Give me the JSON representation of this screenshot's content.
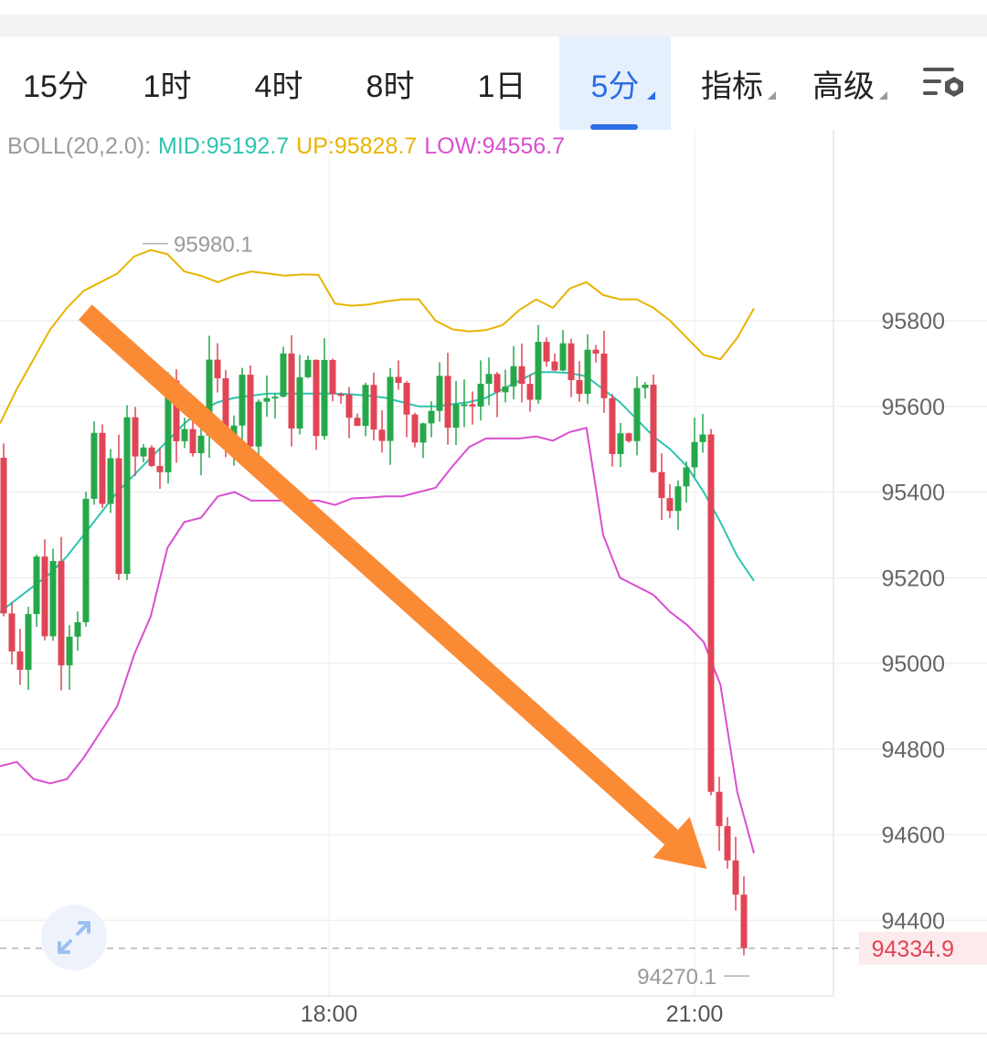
{
  "tabs": [
    {
      "label": "15分",
      "active": false,
      "dropdown": false
    },
    {
      "label": "1时",
      "active": false,
      "dropdown": false
    },
    {
      "label": "4时",
      "active": false,
      "dropdown": false
    },
    {
      "label": "8时",
      "active": false,
      "dropdown": false
    },
    {
      "label": "1日",
      "active": false,
      "dropdown": false
    },
    {
      "label": "5分",
      "active": true,
      "dropdown": true
    },
    {
      "label": "指标",
      "active": false,
      "dropdown": true
    },
    {
      "label": "高级",
      "active": false,
      "dropdown": true
    }
  ],
  "settings_icon": "chart-settings-icon",
  "boll": {
    "name": "BOLL(20,2.0):",
    "mid_label": "MID:95192.7",
    "up_label": "UP:95828.7",
    "low_label": "LOW:94556.7"
  },
  "colors": {
    "mid": "#2ec4b0",
    "up": "#e8b400",
    "low": "#d94fd0",
    "up_candle": "#26a84a",
    "down_candle": "#e04556",
    "arrow": "#fb8a35",
    "last_price": "#e04556"
  },
  "y_axis": {
    "ticks": [
      "95800",
      "95600",
      "95400",
      "95200",
      "95000",
      "94800",
      "94600",
      "94400"
    ]
  },
  "x_axis": {
    "labels": [
      "18:00",
      "21:00"
    ]
  },
  "annotations": {
    "high_label": "95980.1",
    "low_label": "94270.1"
  },
  "last_price": "94334.9",
  "expand_icon": "expand-arrows-icon",
  "chart_data": {
    "type": "candlestick",
    "interval": "5分",
    "y_ticks": [
      95800,
      95600,
      95400,
      95200,
      95000,
      94800,
      94600,
      94400
    ],
    "x_labels": [
      "18:00",
      "21:00"
    ],
    "high_marker": 95980.1,
    "low_marker": 94270.1,
    "last_price": 94334.9,
    "trend_arrow": {
      "from": [
        16.0,
        95820
      ],
      "to": [
        21.1,
        94520
      ]
    },
    "series": [
      {
        "name": "MID",
        "values": [
          95120,
          95150,
          95180,
          95210,
          95250,
          95300,
          95350,
          95400,
          95440,
          95480,
          95520,
          95560,
          95590,
          95610,
          95620,
          95625,
          95630,
          95630,
          95630,
          95630,
          95630,
          95628,
          95625,
          95620,
          95610,
          95600,
          95600,
          95605,
          95610,
          95620,
          95640,
          95660,
          95680,
          95680,
          95678,
          95670,
          95640,
          95610,
          95570,
          95530,
          95500,
          95460,
          95400,
          95330,
          95250,
          95192.7
        ]
      },
      {
        "name": "UP",
        "values": [
          95560,
          95640,
          95710,
          95780,
          95830,
          95870,
          95890,
          95910,
          95950,
          95965,
          95955,
          95915,
          95905,
          95890,
          95905,
          95915,
          95910,
          95905,
          95908,
          95907,
          95840,
          95835,
          95838,
          95845,
          95850,
          95850,
          95800,
          95780,
          95775,
          95778,
          95790,
          95825,
          95850,
          95830,
          95875,
          95890,
          95860,
          95850,
          95850,
          95830,
          95800,
          95760,
          95720,
          95710,
          95760,
          95828.7
        ]
      },
      {
        "name": "LOW",
        "values": [
          94760,
          94770,
          94730,
          94720,
          94730,
          94780,
          94840,
          94900,
          95020,
          95110,
          95270,
          95330,
          95340,
          95390,
          95400,
          95380,
          95380,
          95380,
          95380,
          95380,
          95370,
          95385,
          95387,
          95390,
          95390,
          95400,
          95410,
          95460,
          95505,
          95525,
          95525,
          95525,
          95530,
          95520,
          95540,
          95550,
          95300,
          95200,
          95180,
          95160,
          95120,
          95090,
          95050,
          94950,
          94700,
          94556.7
        ]
      }
    ]
  }
}
